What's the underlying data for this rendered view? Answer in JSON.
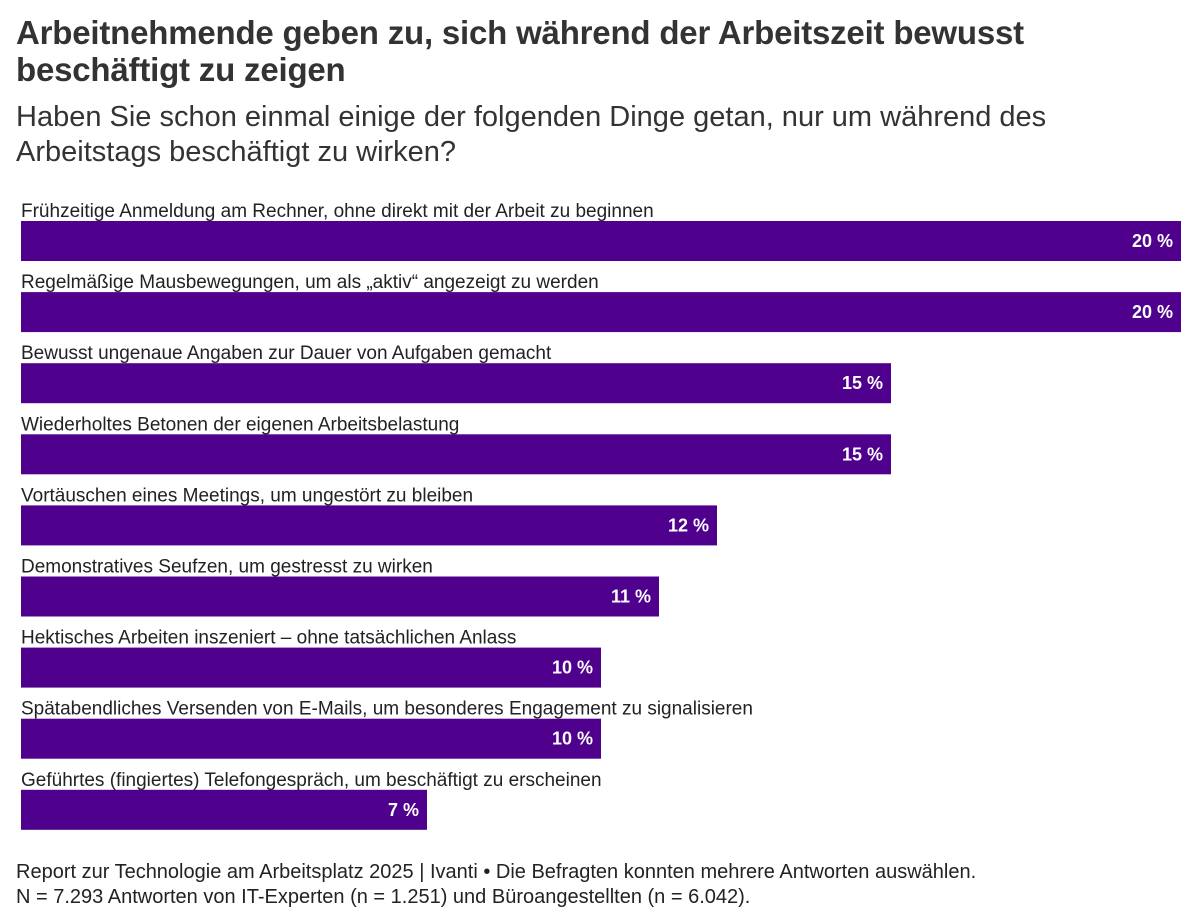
{
  "header": {
    "title": "Arbeitnehmende geben zu, sich während der Arbeitszeit bewusst beschäftigt zu zeigen",
    "subtitle": "Haben Sie schon einmal einige der folgenden Dinge getan, nur um während des Arbeitstags beschäftigt zu wirken?"
  },
  "chart_data": {
    "type": "bar",
    "orientation": "horizontal",
    "bar_color": "#4F008C",
    "value_suffix": " %",
    "categories": [
      "Frühzeitige Anmeldung am Rechner, ohne direkt mit der Arbeit zu beginnen",
      "Regelmäßige Mausbewegungen, um als „aktiv“ angezeigt zu werden",
      "Bewusst ungenaue Angaben zur Dauer von Aufgaben gemacht",
      "Wiederholtes Betonen der eigenen Arbeitsbelastung",
      "Vortäuschen eines Meetings, um ungestört zu bleiben",
      "Demonstratives Seufzen, um gestresst zu wirken",
      "Hektisches Arbeiten inszeniert – ohne tatsächlichen Anlass",
      "Spätabendliches Versenden von E-Mails, um besonderes Engagement zu signalisieren",
      "Geführtes (fingiertes) Telefongespräch, um beschäftigt zu erscheinen"
    ],
    "values": [
      20,
      20,
      15,
      15,
      12,
      11,
      10,
      10,
      7
    ],
    "xlim": [
      0,
      20
    ],
    "grid": false,
    "legend": "none"
  },
  "footer": {
    "line1": "Report zur Technologie am Arbeitsplatz 2025 | Ivanti • Die Befragten konnten mehrere Antworten auswählen.",
    "line2": "N = 7.293 Antworten von IT-Experten (n = 1.251) und Büroangestellten (n = 6.042)."
  }
}
